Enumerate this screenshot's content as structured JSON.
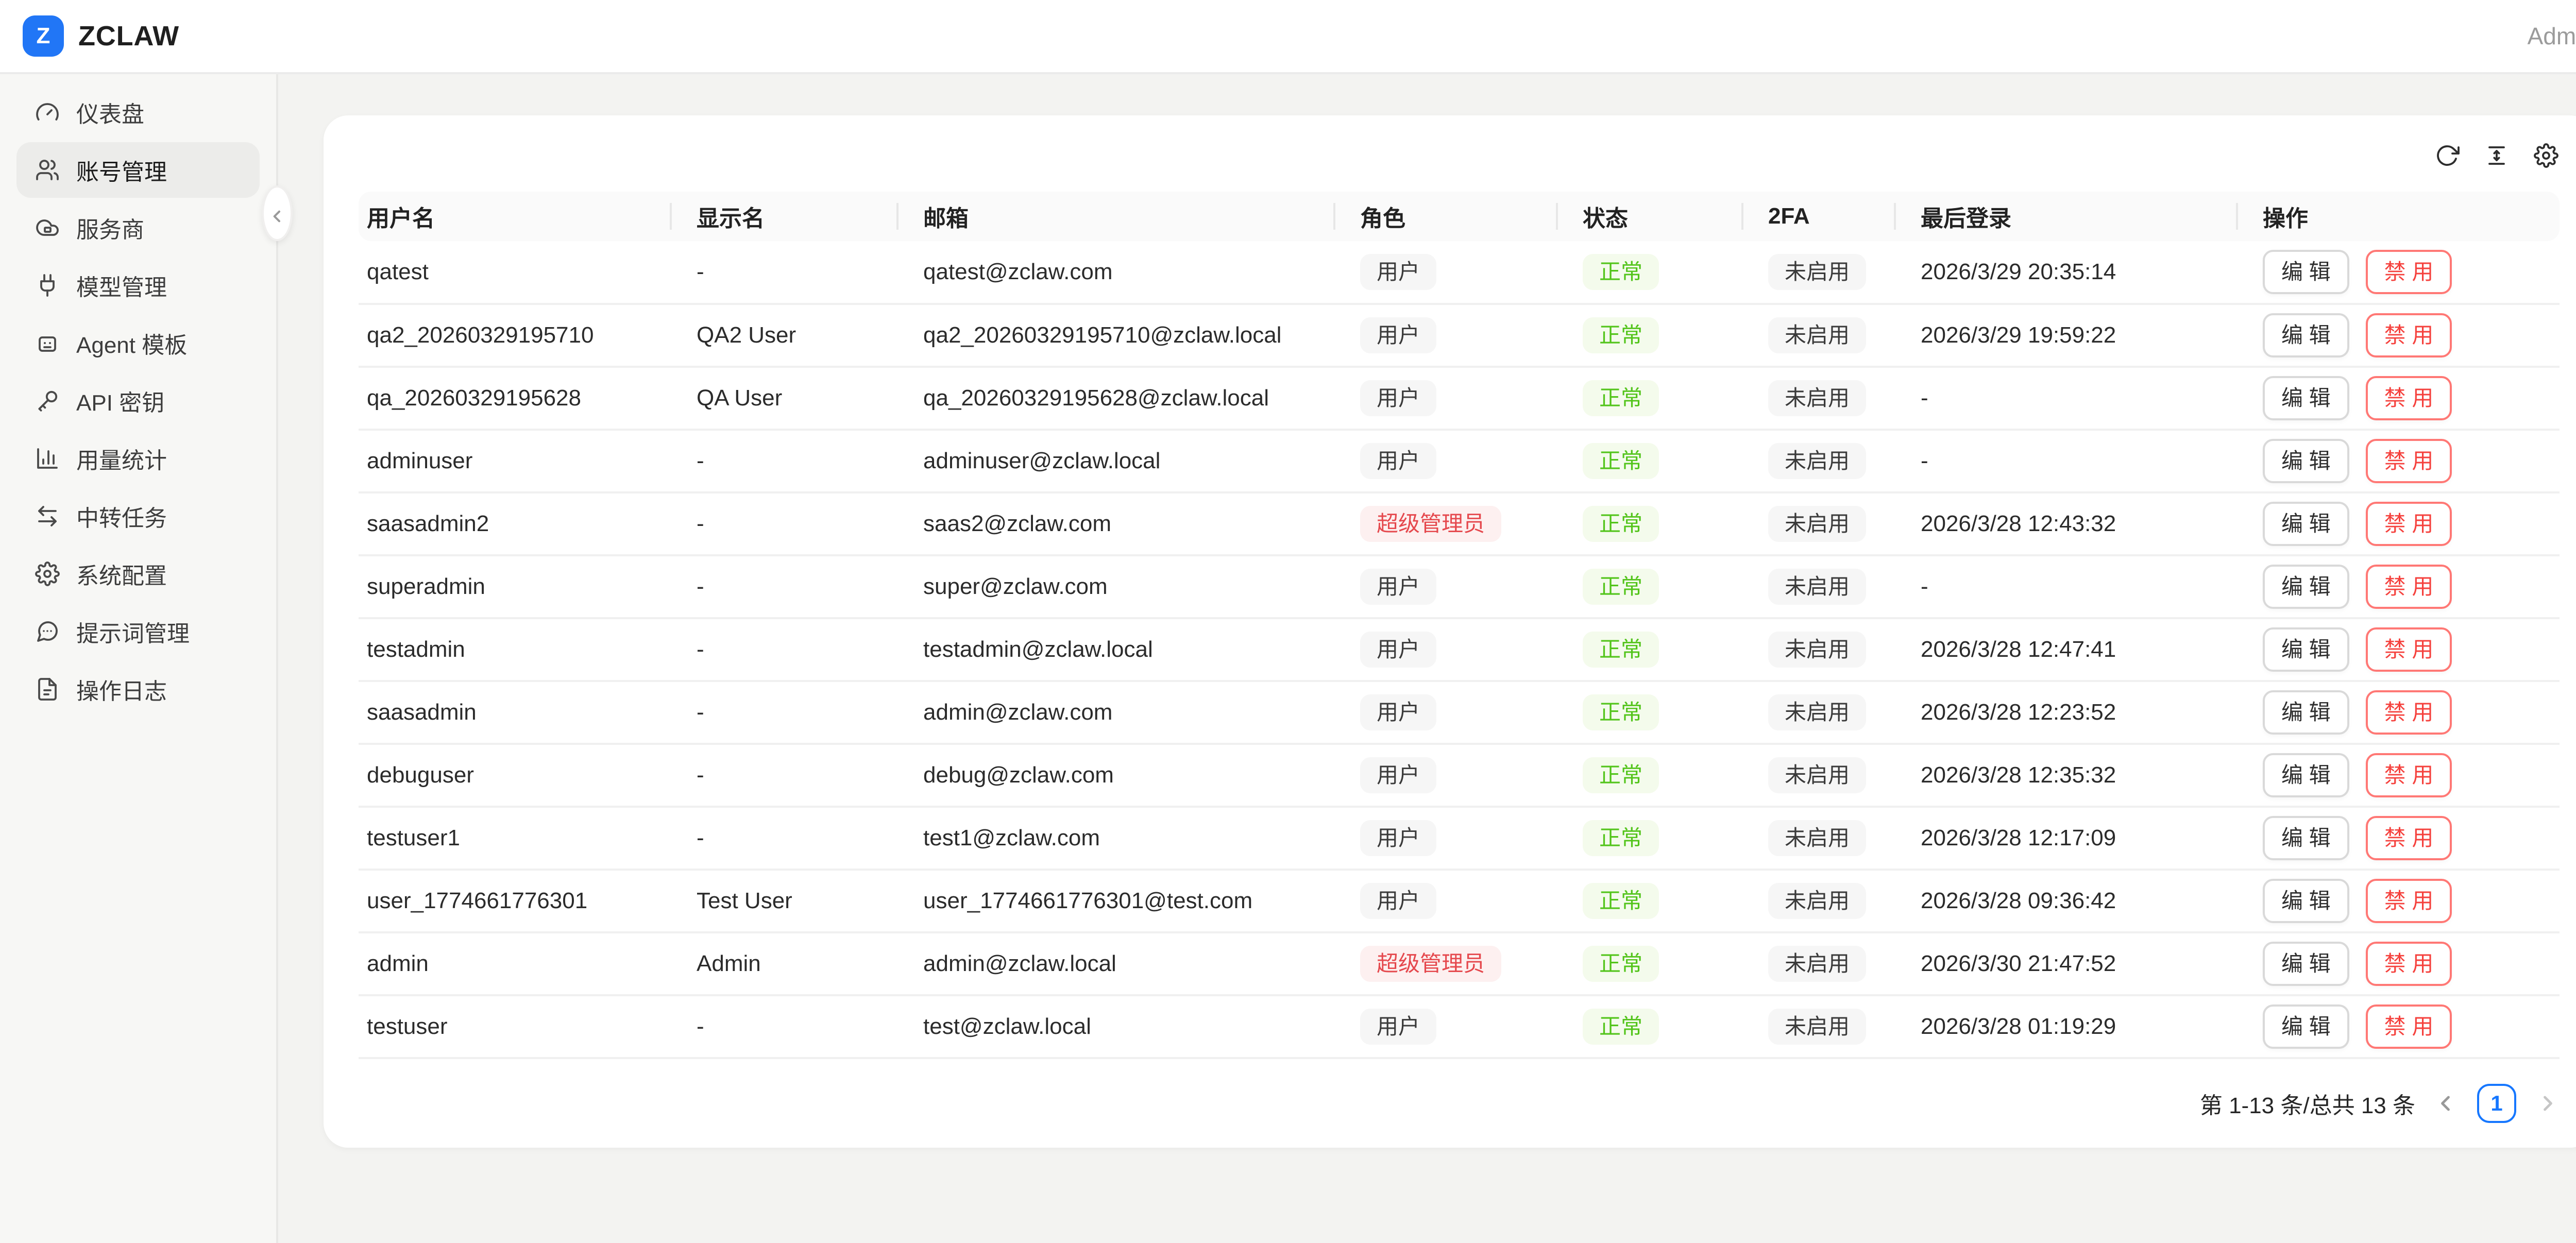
{
  "header": {
    "logo_letter": "Z",
    "brand": "ZCLAW",
    "user_label": "Admin"
  },
  "sidebar": {
    "items": [
      {
        "key": "dashboard",
        "icon": "gauge-icon",
        "label": "仪表盘",
        "active": false
      },
      {
        "key": "account-management",
        "icon": "users-icon",
        "label": "账号管理",
        "active": true
      },
      {
        "key": "providers",
        "icon": "cloud-icon",
        "label": "服务商",
        "active": false
      },
      {
        "key": "model-management",
        "icon": "plug-icon",
        "label": "模型管理",
        "active": false
      },
      {
        "key": "agent-templates",
        "icon": "robot-icon",
        "label": "Agent 模板",
        "active": false
      },
      {
        "key": "api-keys",
        "icon": "key-icon",
        "label": "API 密钥",
        "active": false
      },
      {
        "key": "usage-stats",
        "icon": "bar-chart-icon",
        "label": "用量统计",
        "active": false
      },
      {
        "key": "relay-tasks",
        "icon": "swap-icon",
        "label": "中转任务",
        "active": false
      },
      {
        "key": "system-config",
        "icon": "gear-icon",
        "label": "系统配置",
        "active": false
      },
      {
        "key": "prompt-management",
        "icon": "message-icon",
        "label": "提示词管理",
        "active": false
      },
      {
        "key": "operation-logs",
        "icon": "file-icon",
        "label": "操作日志",
        "active": false
      }
    ]
  },
  "toolbar": {
    "icons": [
      {
        "key": "refresh",
        "name": "refresh-icon"
      },
      {
        "key": "row-height",
        "name": "row-height-icon"
      },
      {
        "key": "settings",
        "name": "gear-icon"
      }
    ]
  },
  "table": {
    "columns": [
      "用户名",
      "显示名",
      "邮箱",
      "角色",
      "状态",
      "2FA",
      "最后登录",
      "操作"
    ],
    "rows": [
      {
        "username": "qatest",
        "display_name": "-",
        "email": "qatest@zclaw.com",
        "role": "用户",
        "role_type": "user",
        "status": "正常",
        "twofa": "未启用",
        "last_login": "2026/3/29 20:35:14"
      },
      {
        "username": "qa2_20260329195710",
        "display_name": "QA2 User",
        "email": "qa2_20260329195710@zclaw.local",
        "role": "用户",
        "role_type": "user",
        "status": "正常",
        "twofa": "未启用",
        "last_login": "2026/3/29 19:59:22"
      },
      {
        "username": "qa_20260329195628",
        "display_name": "QA User",
        "email": "qa_20260329195628@zclaw.local",
        "role": "用户",
        "role_type": "user",
        "status": "正常",
        "twofa": "未启用",
        "last_login": "-"
      },
      {
        "username": "adminuser",
        "display_name": "-",
        "email": "adminuser@zclaw.local",
        "role": "用户",
        "role_type": "user",
        "status": "正常",
        "twofa": "未启用",
        "last_login": "-"
      },
      {
        "username": "saasadmin2",
        "display_name": "-",
        "email": "saas2@zclaw.com",
        "role": "超级管理员",
        "role_type": "super-admin",
        "status": "正常",
        "twofa": "未启用",
        "last_login": "2026/3/28 12:43:32"
      },
      {
        "username": "superadmin",
        "display_name": "-",
        "email": "super@zclaw.com",
        "role": "用户",
        "role_type": "user",
        "status": "正常",
        "twofa": "未启用",
        "last_login": "-"
      },
      {
        "username": "testadmin",
        "display_name": "-",
        "email": "testadmin@zclaw.local",
        "role": "用户",
        "role_type": "user",
        "status": "正常",
        "twofa": "未启用",
        "last_login": "2026/3/28 12:47:41"
      },
      {
        "username": "saasadmin",
        "display_name": "-",
        "email": "admin@zclaw.com",
        "role": "用户",
        "role_type": "user",
        "status": "正常",
        "twofa": "未启用",
        "last_login": "2026/3/28 12:23:52"
      },
      {
        "username": "debuguser",
        "display_name": "-",
        "email": "debug@zclaw.com",
        "role": "用户",
        "role_type": "user",
        "status": "正常",
        "twofa": "未启用",
        "last_login": "2026/3/28 12:35:32"
      },
      {
        "username": "testuser1",
        "display_name": "-",
        "email": "test1@zclaw.com",
        "role": "用户",
        "role_type": "user",
        "status": "正常",
        "twofa": "未启用",
        "last_login": "2026/3/28 12:17:09"
      },
      {
        "username": "user_1774661776301",
        "display_name": "Test User",
        "email": "user_1774661776301@test.com",
        "role": "用户",
        "role_type": "user",
        "status": "正常",
        "twofa": "未启用",
        "last_login": "2026/3/28 09:36:42"
      },
      {
        "username": "admin",
        "display_name": "Admin",
        "email": "admin@zclaw.local",
        "role": "超级管理员",
        "role_type": "super-admin",
        "status": "正常",
        "twofa": "未启用",
        "last_login": "2026/3/30 21:47:52"
      },
      {
        "username": "testuser",
        "display_name": "-",
        "email": "test@zclaw.local",
        "role": "用户",
        "role_type": "user",
        "status": "正常",
        "twofa": "未启用",
        "last_login": "2026/3/28 01:19:29"
      }
    ]
  },
  "actions": {
    "edit_label": "编 辑",
    "disable_label": "禁 用"
  },
  "pagination": {
    "summary": "第 1-13 条/总共 13 条",
    "current_page": "1"
  },
  "colors": {
    "brand_blue": "#2176f6",
    "accent_blue": "#1677ff",
    "success_green": "#52c41a",
    "success_bg": "#f4fbec",
    "danger_red": "#e5484d",
    "danger_bg": "#fdf0f0",
    "chip_gray_bg": "#f6f6f6"
  }
}
